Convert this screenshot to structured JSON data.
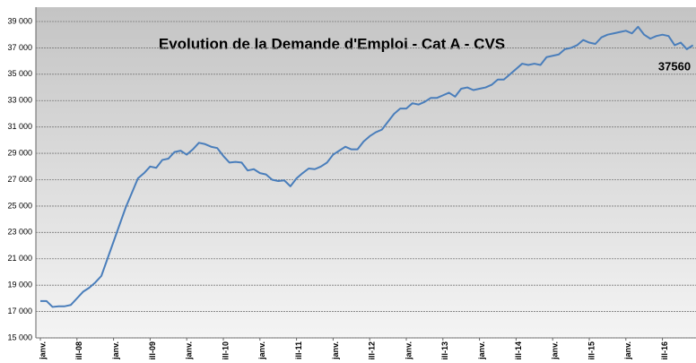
{
  "chart_data": {
    "type": "line",
    "title": "Evolution de la Demande  d'Emploi - Cat A - CVS",
    "annotation": "37560",
    "categories": [
      "janv.",
      null,
      null,
      null,
      null,
      null,
      "ill-08",
      null,
      null,
      null,
      null,
      null,
      "janv.",
      null,
      null,
      null,
      null,
      null,
      "ill-09",
      null,
      null,
      null,
      null,
      null,
      "janv.",
      null,
      null,
      null,
      null,
      null,
      "ill-10",
      null,
      null,
      null,
      null,
      null,
      "janv.",
      null,
      null,
      null,
      null,
      null,
      "ill-11",
      null,
      null,
      null,
      null,
      null,
      "janv.",
      null,
      null,
      null,
      null,
      null,
      "ill-12",
      null,
      null,
      null,
      null,
      null,
      "janv.",
      null,
      null,
      null,
      null,
      null,
      "ill-13",
      null,
      null,
      null,
      null,
      null,
      "janv.",
      null,
      null,
      null,
      null,
      null,
      "ill-14",
      null,
      null,
      null,
      null,
      null,
      "janv.",
      null,
      null,
      null,
      null,
      null,
      "ill-15",
      null,
      null,
      null,
      null,
      null,
      "janv.",
      null,
      null,
      null,
      null,
      null,
      "ill-16",
      null,
      null,
      null,
      null,
      null
    ],
    "series": [
      {
        "name": "Cat A",
        "color": "#4a7ebb",
        "values": [
          17800,
          17800,
          17350,
          17400,
          17400,
          17500,
          18000,
          18500,
          18800,
          19200,
          19700,
          21000,
          22300,
          23600,
          24900,
          26000,
          27100,
          27500,
          28000,
          27900,
          28500,
          28600,
          29100,
          29200,
          28900,
          29300,
          29800,
          29700,
          29500,
          29400,
          28800,
          28300,
          28350,
          28300,
          27700,
          27800,
          27500,
          27400,
          27000,
          26900,
          26950,
          26500,
          27100,
          27500,
          27850,
          27800,
          28000,
          28300,
          28900,
          29200,
          29500,
          29300,
          29300,
          29900,
          30300,
          30600,
          30800,
          31400,
          32000,
          32400,
          32400,
          32800,
          32700,
          32900,
          33200,
          33200,
          33400,
          33600,
          33300,
          33900,
          34000,
          33800,
          33900,
          34000,
          34200,
          34600,
          34600,
          35000,
          35400,
          35800,
          35700,
          35800,
          35700,
          36300,
          36400,
          36500,
          36900,
          37000,
          37200,
          37600,
          37400,
          37300,
          37800,
          38000,
          38100,
          38200,
          38300,
          38100,
          38600,
          38000,
          37700,
          37900,
          38000,
          37900,
          37200,
          37400,
          36900,
          37200
        ]
      }
    ],
    "ylim": [
      15000,
      39000
    ],
    "yticks": [
      {
        "value": 15000,
        "label": "15 000"
      },
      {
        "value": 17000,
        "label": "17 000"
      },
      {
        "value": 19000,
        "label": "19 000"
      },
      {
        "value": 21000,
        "label": "21 000"
      },
      {
        "value": 23000,
        "label": "23 000"
      },
      {
        "value": 25000,
        "label": "25 000"
      },
      {
        "value": 27000,
        "label": "27 000"
      },
      {
        "value": 29000,
        "label": "29 000"
      },
      {
        "value": 31000,
        "label": "31 000"
      },
      {
        "value": 33000,
        "label": "33 000"
      },
      {
        "value": 35000,
        "label": "35 000"
      },
      {
        "value": 37000,
        "label": "37 000"
      },
      {
        "value": 39000,
        "label": "39 000"
      }
    ],
    "grid": true
  }
}
